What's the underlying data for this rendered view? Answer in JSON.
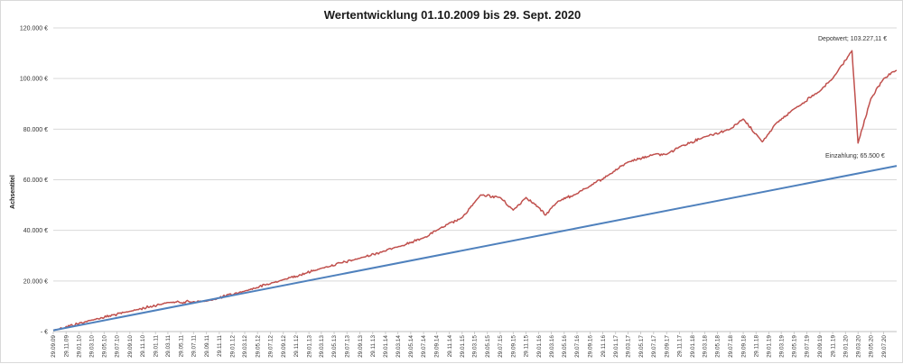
{
  "chart_data": {
    "type": "line",
    "title": "Wertentwicklung 01.10.2009  bis 29. Sept. 2020",
    "xlabel": "",
    "ylabel": "Achsentitel",
    "x_range": [
      "29.09.09",
      "29.09.20"
    ],
    "ylim": [
      0,
      120000
    ],
    "y_ticks": [
      {
        "value": 0,
        "label": "-   €"
      },
      {
        "value": 20000,
        "label": "20.000 €"
      },
      {
        "value": 40000,
        "label": "40.000 €"
      },
      {
        "value": 60000,
        "label": "60.000 €"
      },
      {
        "value": 80000,
        "label": "80.000 €"
      },
      {
        "value": 100000,
        "label": "100.000 €"
      },
      {
        "value": 120000,
        "label": "120.000 €"
      }
    ],
    "x_tick_labels": [
      "29.09.09",
      "29.11.09",
      "29.01.10",
      "29.03.10",
      "29.05.10",
      "29.07.10",
      "29.09.10",
      "29.11.10",
      "29.01.11",
      "29.03.11",
      "29.05.11",
      "29.07.11",
      "29.09.11",
      "29.11.11",
      "29.01.12",
      "29.03.12",
      "29.05.12",
      "29.07.12",
      "29.09.12",
      "29.11.12",
      "29.01.13",
      "29.03.13",
      "29.05.13",
      "29.07.13",
      "29.09.13",
      "29.11.13",
      "29.01.14",
      "29.03.14",
      "29.05.14",
      "29.07.14",
      "29.09.14",
      "29.11.14",
      "29.01.15",
      "29.03.15",
      "29.05.15",
      "29.07.15",
      "29.09.15",
      "29.11.15",
      "29.01.16",
      "29.03.16",
      "29.05.16",
      "29.07.16",
      "29.09.16",
      "29.11.16",
      "29.01.17",
      "29.03.17",
      "29.05.17",
      "29.07.17",
      "29.09.17",
      "29.11.17",
      "29.01.18",
      "29.03.18",
      "29.05.18",
      "29.07.18",
      "29.09.18",
      "29.11.18",
      "29.01.19",
      "29.03.19",
      "29.05.19",
      "29.07.19",
      "29.09.19",
      "29.11.19",
      "29.01.20",
      "29.03.20",
      "29.05.20",
      "29.07.20"
    ],
    "grid": {
      "horizontal": true,
      "vertical": false
    },
    "legend": "none",
    "series": [
      {
        "color": "#c0504d",
        "x": [
          "29.09.09",
          "29.03.10",
          "29.09.10",
          "29.03.11",
          "29.09.11",
          "29.03.12",
          "29.09.12",
          "29.03.13",
          "29.09.13",
          "29.03.14",
          "29.07.14",
          "29.09.14",
          "29.01.15",
          "29.03.15",
          "29.04.15",
          "29.07.15",
          "29.09.15",
          "29.11.15",
          "29.01.16",
          "29.02.16",
          "29.04.16",
          "29.07.16",
          "29.09.16",
          "29.12.16",
          "29.03.17",
          "29.07.17",
          "29.09.17",
          "29.11.17",
          "29.03.18",
          "29.07.18",
          "29.09.18",
          "29.12.18",
          "29.02.19",
          "29.05.19",
          "29.09.19",
          "29.11.19",
          "29.02.20",
          "29.03.20",
          "29.05.20",
          "29.07.20",
          "29.09.20"
        ],
        "values": [
          500,
          4500,
          8000,
          11500,
          12000,
          16000,
          20500,
          25000,
          29000,
          33500,
          37000,
          40000,
          45000,
          51000,
          54000,
          53000,
          48000,
          53000,
          49000,
          46000,
          51500,
          54500,
          57500,
          62000,
          67000,
          70000,
          70000,
          73000,
          77000,
          80000,
          84000,
          75000,
          82000,
          88000,
          95000,
          100000,
          111000,
          74500,
          92000,
          100000,
          103227
        ]
      },
      {
        "color": "#4f81bd",
        "x": [
          "29.09.09",
          "29.09.20"
        ],
        "values": [
          500,
          65500
        ]
      }
    ],
    "annotations": [
      {
        "text": "Depotwert;   103.227,11 €",
        "near": "end of red series, top-right"
      },
      {
        "text": "Einzahlung;  65.500 €",
        "near": "end of blue series, right"
      }
    ]
  }
}
